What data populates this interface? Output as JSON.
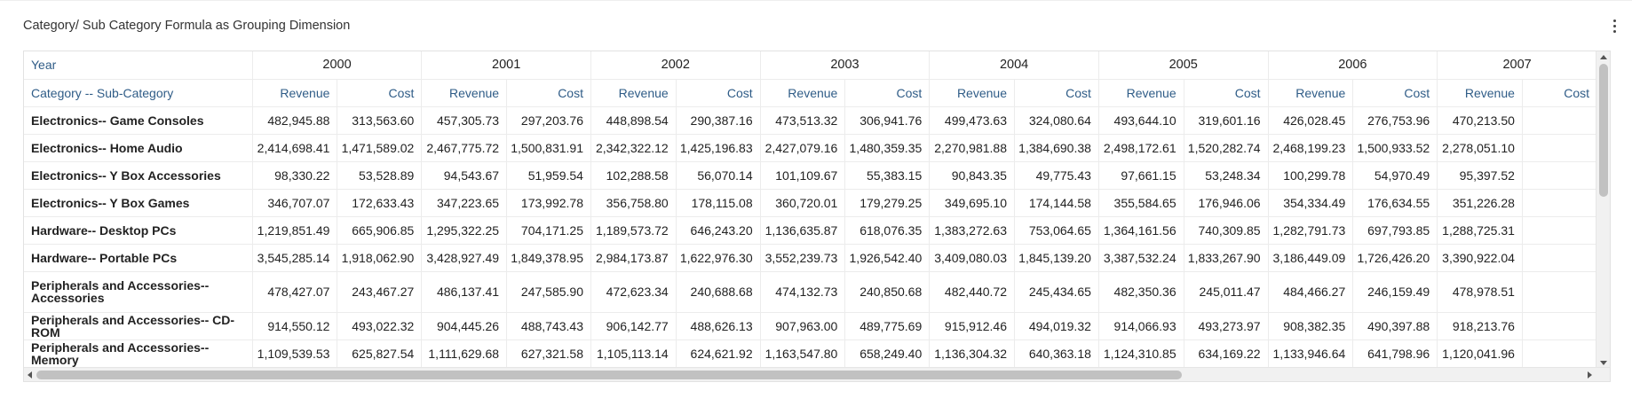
{
  "panel": {
    "title": "Category/ Sub Category Formula as Grouping Dimension",
    "menu_icon": "kebab-menu-icon"
  },
  "grid": {
    "corner_year_label": "Year",
    "corner_row_label": "Category -- Sub-Category",
    "years": [
      "2000",
      "2001",
      "2002",
      "2003",
      "2004",
      "2005",
      "2006",
      "2007"
    ],
    "measures": [
      "Revenue",
      "Cost"
    ],
    "rows": [
      {
        "label": "Electronics-- Game Consoles",
        "values": [
          "482,945.88",
          "313,563.60",
          "457,305.73",
          "297,203.76",
          "448,898.54",
          "290,387.16",
          "473,513.32",
          "306,941.76",
          "499,473.63",
          "324,080.64",
          "493,644.10",
          "319,601.16",
          "426,028.45",
          "276,753.96",
          "470,213.50"
        ]
      },
      {
        "label": "Electronics-- Home Audio",
        "values": [
          "2,414,698.41",
          "1,471,589.02",
          "2,467,775.72",
          "1,500,831.91",
          "2,342,322.12",
          "1,425,196.83",
          "2,427,079.16",
          "1,480,359.35",
          "2,270,981.88",
          "1,384,690.38",
          "2,498,172.61",
          "1,520,282.74",
          "2,468,199.23",
          "1,500,933.52",
          "2,278,051.10"
        ]
      },
      {
        "label": "Electronics-- Y Box Accessories",
        "values": [
          "98,330.22",
          "53,528.89",
          "94,543.67",
          "51,959.54",
          "102,288.58",
          "56,070.14",
          "101,109.67",
          "55,383.15",
          "90,843.35",
          "49,775.43",
          "97,661.15",
          "53,248.34",
          "100,299.78",
          "54,970.49",
          "95,397.52"
        ]
      },
      {
        "label": "Electronics-- Y Box Games",
        "values": [
          "346,707.07",
          "172,633.43",
          "347,223.65",
          "173,992.78",
          "356,758.80",
          "178,115.08",
          "360,720.01",
          "179,279.25",
          "349,695.10",
          "174,144.58",
          "355,584.65",
          "176,946.06",
          "354,334.49",
          "176,634.55",
          "351,226.28"
        ]
      },
      {
        "label": "Hardware-- Desktop PCs",
        "values": [
          "1,219,851.49",
          "665,906.85",
          "1,295,322.25",
          "704,171.25",
          "1,189,573.72",
          "646,243.20",
          "1,136,635.87",
          "618,076.35",
          "1,383,272.63",
          "753,064.65",
          "1,364,161.56",
          "740,309.85",
          "1,282,791.73",
          "697,793.85",
          "1,288,725.31"
        ]
      },
      {
        "label": "Hardware-- Portable PCs",
        "values": [
          "3,545,285.14",
          "1,918,062.90",
          "3,428,927.49",
          "1,849,378.95",
          "2,984,173.87",
          "1,622,976.30",
          "3,552,239.73",
          "1,926,542.40",
          "3,409,080.03",
          "1,845,139.20",
          "3,387,532.24",
          "1,833,267.90",
          "3,186,449.09",
          "1,726,426.20",
          "3,390,922.04"
        ]
      },
      {
        "label": "Peripherals and Accessories-- Accessories",
        "values": [
          "478,427.07",
          "243,467.27",
          "486,137.41",
          "247,585.90",
          "472,623.34",
          "240,688.68",
          "474,132.73",
          "240,850.68",
          "482,440.72",
          "245,434.65",
          "482,350.36",
          "245,011.47",
          "484,466.27",
          "246,159.49",
          "478,978.51"
        ]
      },
      {
        "label": "Peripherals and Accessories-- CD-ROM",
        "values": [
          "914,550.12",
          "493,022.32",
          "904,445.26",
          "488,743.43",
          "906,142.77",
          "488,626.13",
          "907,963.00",
          "489,775.69",
          "915,912.46",
          "494,019.32",
          "914,066.93",
          "493,273.97",
          "908,382.35",
          "490,397.88",
          "918,213.76"
        ]
      },
      {
        "label": "Peripherals and Accessories-- Memory",
        "values": [
          "1,109,539.53",
          "625,827.54",
          "1,111,629.68",
          "627,321.58",
          "1,105,113.14",
          "624,621.92",
          "1,163,547.80",
          "658,249.40",
          "1,136,304.32",
          "640,363.18",
          "1,124,310.85",
          "634,169.22",
          "1,133,946.64",
          "641,798.96",
          "1,120,041.96"
        ]
      }
    ]
  }
}
